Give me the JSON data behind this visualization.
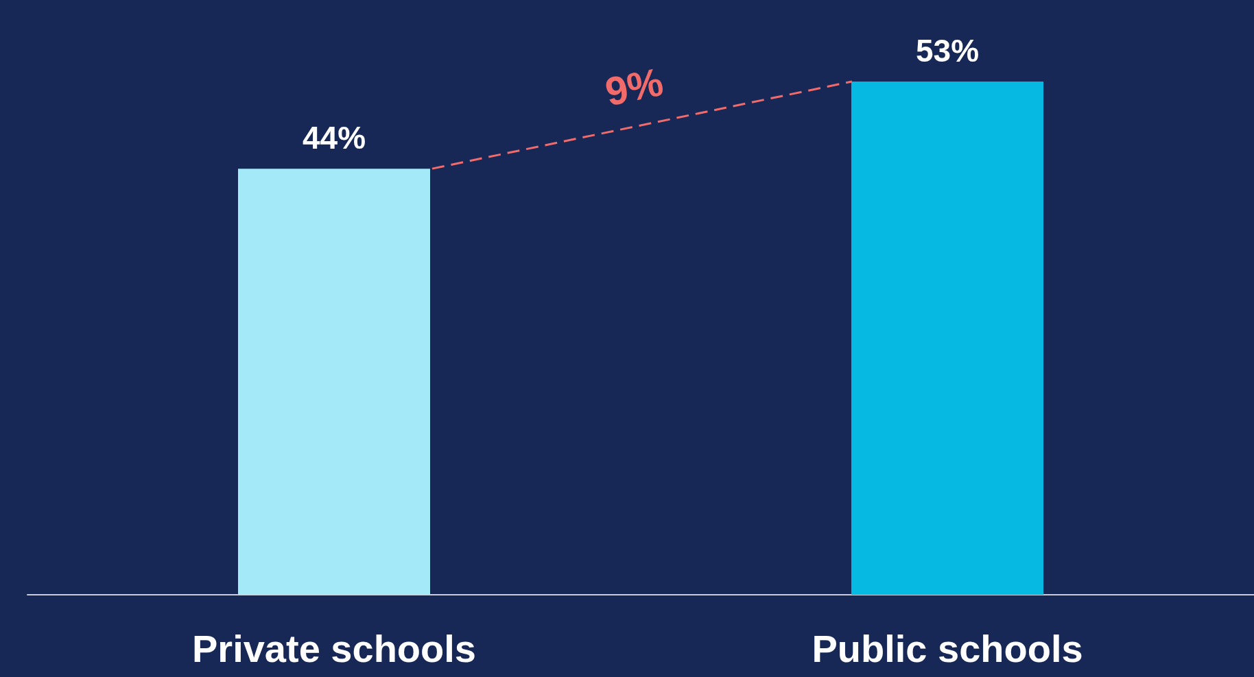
{
  "chart_data": {
    "type": "bar",
    "categories": [
      "Private schools",
      "Public schools"
    ],
    "values": [
      44,
      53
    ],
    "colors": [
      "#a3e9f7",
      "#05b9e2"
    ],
    "value_labels": [
      "44%",
      "53%"
    ],
    "annotations": [
      "9%"
    ]
  }
}
